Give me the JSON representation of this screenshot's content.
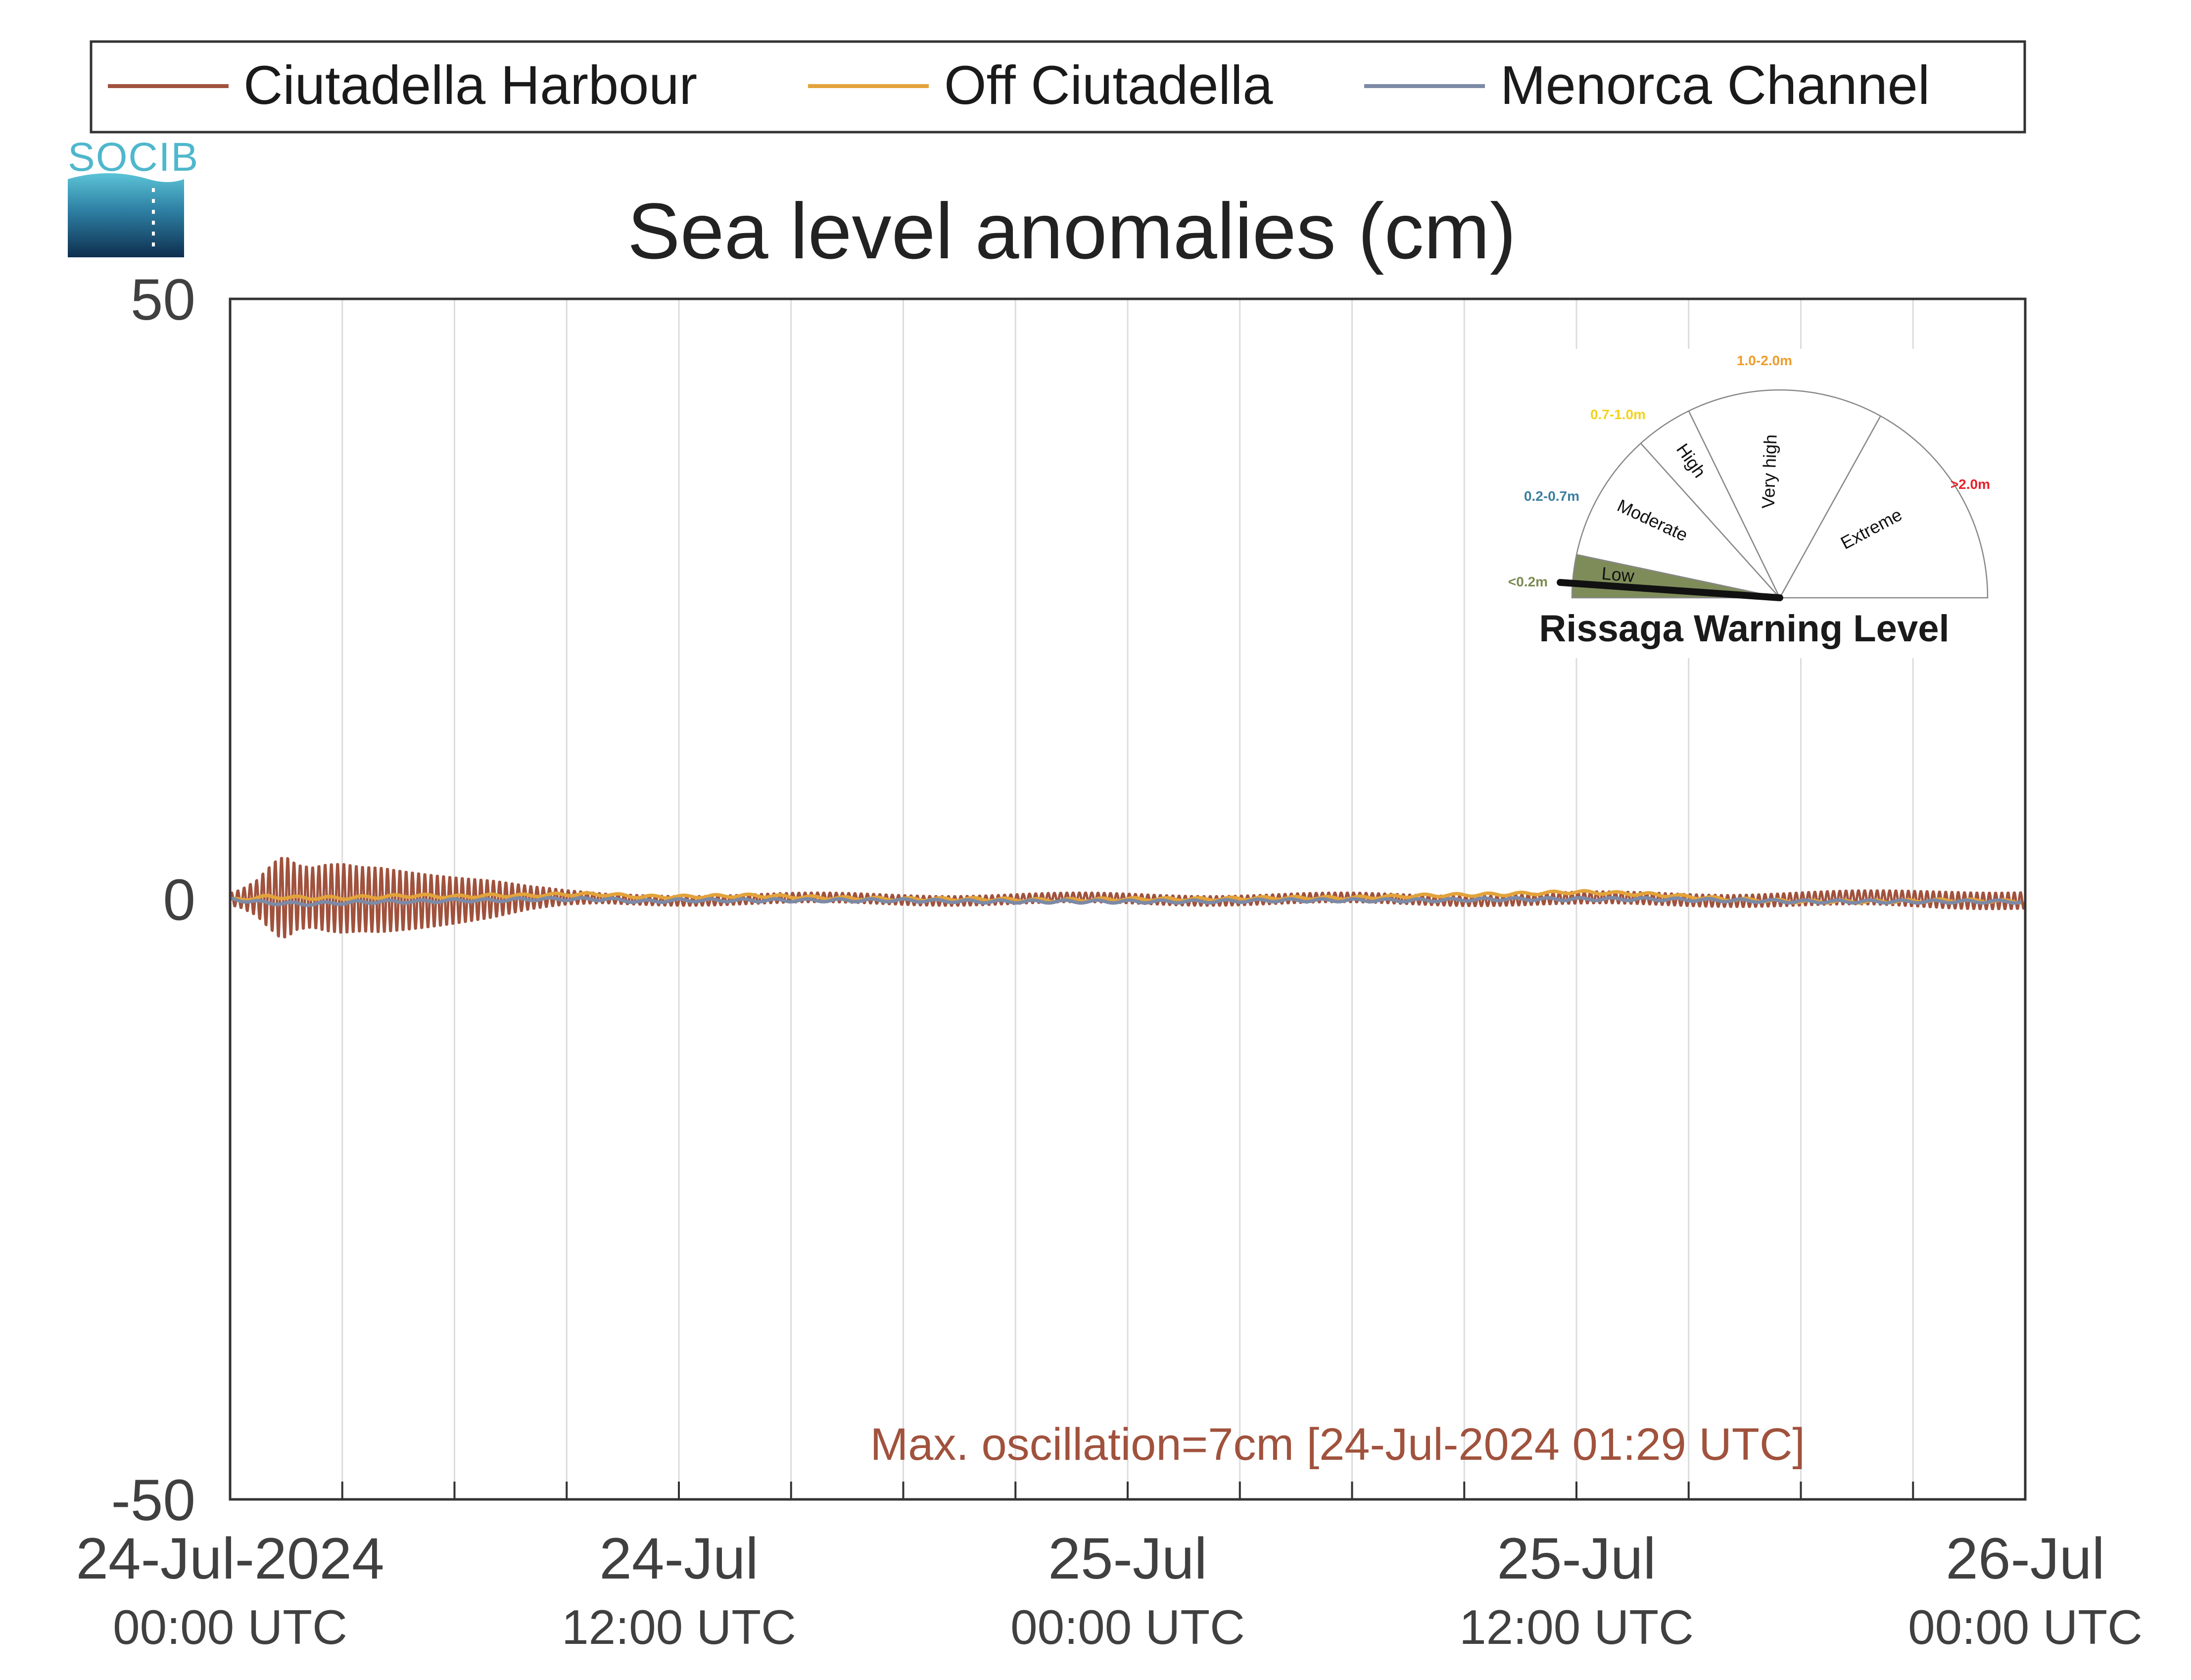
{
  "title": "Sea level anomalies (cm)",
  "logo": {
    "text": "SOCIB"
  },
  "legend": [
    {
      "name": "Ciutadella Harbour",
      "color": "#a0523d"
    },
    {
      "name": "Off Ciutadella",
      "color": "#e3a33b"
    },
    {
      "name": "Menorca Channel",
      "color": "#7c8aa6"
    }
  ],
  "annotation": "Max. oscillation=7cm [24-Jul-2024 01:29 UTC]",
  "gauge": {
    "title": "Rissaga Warning Level",
    "current_level": "Low",
    "sectors": [
      {
        "label": "Low",
        "range": "<0.2m",
        "range_color": "#7a8a52",
        "fill": "#7e8c5a"
      },
      {
        "label": "Moderate",
        "range": "0.2-0.7m",
        "range_color": "#3a7e9e",
        "fill": "#ffffff"
      },
      {
        "label": "High",
        "range": "0.7-1.0m",
        "range_color": "#f2d21c",
        "fill": "#ffffff"
      },
      {
        "label": "Very high",
        "range": "1.0-2.0m",
        "range_color": "#ee9c2a",
        "fill": "#ffffff"
      },
      {
        "label": "Extreme",
        "range": ">2.0m",
        "range_color": "#e8202a",
        "fill": "#ffffff"
      }
    ]
  },
  "chart_data": {
    "type": "line",
    "title": "Sea level anomalies (cm)",
    "xlabel": "",
    "ylabel": "",
    "ylim": [
      -50,
      50
    ],
    "yticks": [
      50,
      0,
      -50
    ],
    "xlim_hours": [
      0,
      48
    ],
    "x_unit": "hours since 24-Jul-2024 00:00 UTC",
    "xticks": [
      {
        "hour": 0,
        "line1": "24-Jul-2024",
        "line2": "00:00 UTC"
      },
      {
        "hour": 12,
        "line1": "24-Jul",
        "line2": "12:00 UTC"
      },
      {
        "hour": 24,
        "line1": "25-Jul",
        "line2": "00:00 UTC"
      },
      {
        "hour": 36,
        "line1": "25-Jul",
        "line2": "12:00 UTC"
      },
      {
        "hour": 48,
        "line1": "26-Jul",
        "line2": "00:00 UTC"
      }
    ],
    "minor_grid_hours": [
      3,
      6,
      9,
      12,
      15,
      18,
      21,
      24,
      27,
      30,
      33,
      36,
      39,
      42,
      45
    ],
    "grid": true,
    "legend_position": "top",
    "series": [
      {
        "name": "Ciutadella Harbour",
        "color": "#a0523d",
        "envelope_x": [
          0,
          0.3,
          0.7,
          1.0,
          1.3,
          1.5,
          1.8,
          2.2,
          2.6,
          3.0,
          3.5,
          4.0,
          4.5,
          5.0,
          5.5,
          6.0,
          6.5,
          7.0,
          7.5,
          8.0,
          9.0,
          10.0,
          12.0,
          16.0,
          20.0,
          24.0,
          28.0,
          32.0,
          36.0,
          40.0,
          44.0,
          46.0,
          48.0
        ],
        "envelope_amplitude": [
          0.5,
          0.8,
          1.5,
          2.5,
          3.4,
          3.5,
          2.8,
          2.6,
          2.9,
          3.0,
          2.8,
          2.8,
          2.6,
          2.4,
          2.2,
          2.0,
          1.8,
          1.6,
          1.3,
          1.0,
          0.6,
          0.4,
          0.4,
          0.4,
          0.4,
          0.4,
          0.4,
          0.4,
          0.5,
          0.5,
          0.6,
          0.7,
          0.7
        ],
        "period_minutes": 10
      },
      {
        "name": "Off Ciutadella",
        "color": "#e3a33b",
        "x": [
          0,
          1,
          2,
          3,
          4,
          5,
          6,
          7,
          8,
          9,
          10,
          11,
          12,
          14,
          16,
          18,
          20,
          22,
          24,
          26,
          28,
          30,
          32,
          34,
          36,
          38,
          40,
          42,
          44,
          46,
          48
        ],
        "y": [
          -0.1,
          0.2,
          0.1,
          0.1,
          0.2,
          0.3,
          0.2,
          0.3,
          0.3,
          0.4,
          0.4,
          0.2,
          0.2,
          0.3,
          0.1,
          0.0,
          0.0,
          -0.1,
          0.0,
          0.0,
          0.1,
          0.1,
          0.3,
          0.4,
          0.6,
          0.4,
          0.0,
          -0.2,
          -0.2,
          -0.1,
          -0.2
        ]
      },
      {
        "name": "Menorca Channel",
        "color": "#7c8aa6",
        "x": [
          0,
          1,
          2,
          3,
          4,
          5,
          6,
          7,
          8,
          9,
          10,
          11,
          12,
          14,
          16,
          18,
          20,
          22,
          24,
          26,
          28,
          30,
          32,
          34,
          36,
          38,
          40,
          42,
          44,
          46,
          48
        ],
        "y": [
          0.0,
          -0.3,
          -0.4,
          -0.3,
          -0.2,
          -0.2,
          -0.1,
          -0.1,
          0.0,
          0.0,
          0.0,
          -0.2,
          -0.1,
          -0.1,
          -0.1,
          -0.1,
          -0.2,
          -0.2,
          -0.2,
          -0.2,
          -0.1,
          -0.1,
          -0.1,
          0.0,
          0.0,
          0.0,
          -0.1,
          -0.2,
          -0.2,
          -0.2,
          -0.2
        ]
      }
    ]
  }
}
